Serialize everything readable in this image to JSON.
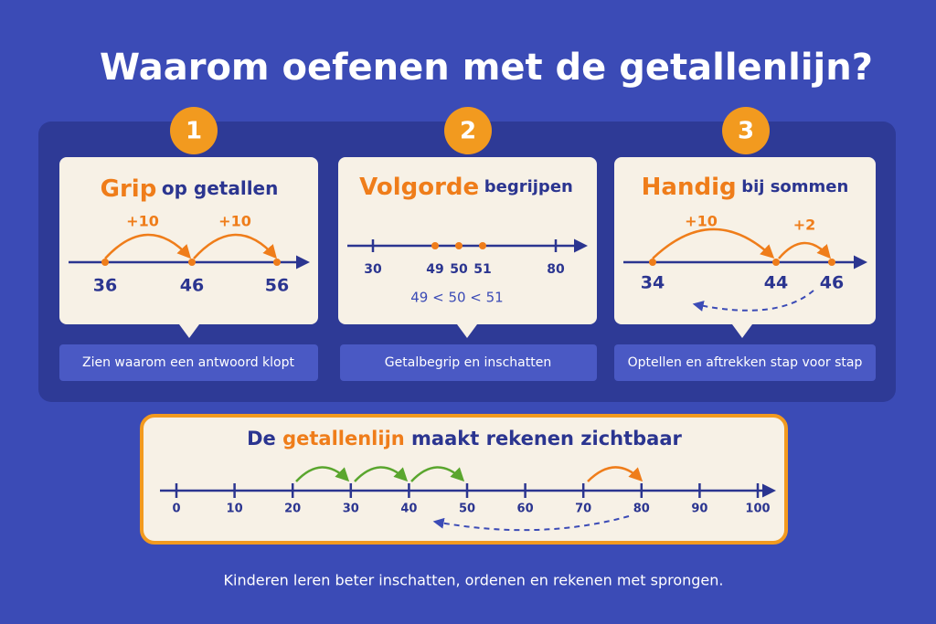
{
  "title": "Waarom oefenen met de getallenlijn?",
  "cards": [
    {
      "number": "1",
      "heading": {
        "highlight": "Grip",
        "rest": "op getallen"
      },
      "jumps": [
        "+10",
        "+10"
      ],
      "numbers": [
        36,
        46,
        56
      ],
      "caption": "Zien waarom een antwoord klopt"
    },
    {
      "number": "2",
      "heading": {
        "highlight": "Volgorde",
        "rest": "begrijpen"
      },
      "numbers": [
        30,
        49,
        50,
        51,
        80
      ],
      "comparison": "49 < 50 < 51",
      "caption": "Getalbegrip en inschatten"
    },
    {
      "number": "3",
      "heading": {
        "highlight": "Handig",
        "rest": "bij sommen"
      },
      "jumps": [
        "+10",
        "+2"
      ],
      "numbers": [
        34,
        44,
        46
      ],
      "caption": "Optellen en aftrekken stap voor stap"
    }
  ],
  "banner": {
    "heading": {
      "before": "De",
      "highlight": "getallenlijn",
      "after": "maakt rekenen zichtbaar"
    },
    "ticks": [
      0,
      10,
      20,
      30,
      40,
      50,
      60,
      70,
      80,
      90,
      100
    ]
  },
  "footer": "Kinderen leren beter inschatten, ordenen en rekenen met sprongen."
}
